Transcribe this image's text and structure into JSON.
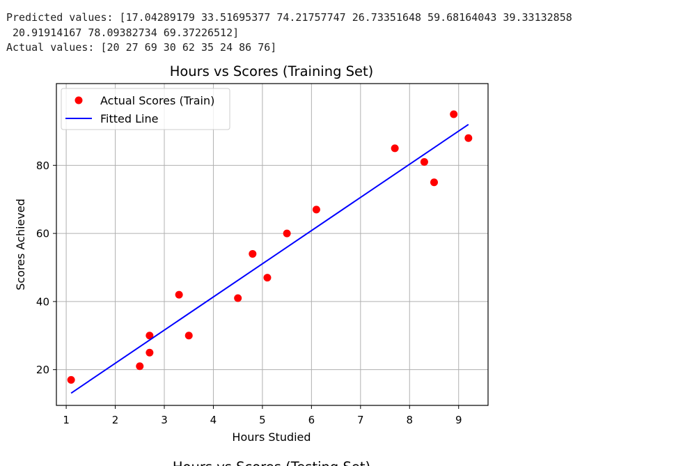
{
  "output": {
    "predicted_label": "Predicted values:",
    "predicted_line1": "Predicted values: [17.04289179 33.51695377 74.21757747 26.73351648 59.68164043 39.33132858",
    "predicted_line2": " 20.91914167 78.09382734 69.37226512]",
    "actual_line": "Actual values: [20 27 69 30 62 35 24 86 76]"
  },
  "chart_data": [
    {
      "type": "scatter",
      "title": "Hours vs Scores (Training Set)",
      "xlabel": "Hours Studied",
      "ylabel": "Scores Achieved",
      "xlim": [
        0.8,
        9.6
      ],
      "ylim": [
        9.5,
        104
      ],
      "x_ticks": [
        1,
        2,
        3,
        4,
        5,
        6,
        7,
        8,
        9
      ],
      "y_ticks": [
        20,
        40,
        60,
        80
      ],
      "grid": true,
      "legend_position": "top-left",
      "series": [
        {
          "name": "Actual Scores (Train)",
          "kind": "scatter",
          "color": "#ff0000",
          "points": [
            [
              1.1,
              17
            ],
            [
              2.5,
              21
            ],
            [
              2.7,
              25
            ],
            [
              2.7,
              30
            ],
            [
              3.3,
              42
            ],
            [
              3.5,
              30
            ],
            [
              4.5,
              41
            ],
            [
              4.8,
              54
            ],
            [
              5.1,
              47
            ],
            [
              5.5,
              60
            ],
            [
              6.1,
              67
            ],
            [
              7.7,
              85
            ],
            [
              8.3,
              81
            ],
            [
              8.5,
              75
            ],
            [
              8.9,
              95
            ],
            [
              9.2,
              88
            ]
          ]
        },
        {
          "name": "Fitted Line",
          "kind": "line",
          "color": "#0000ff",
          "points": [
            [
              1.1,
              13.1
            ],
            [
              9.2,
              92
            ]
          ]
        }
      ]
    },
    {
      "type": "scatter",
      "title": "Hours vs Scores (Testing Set)"
    }
  ]
}
